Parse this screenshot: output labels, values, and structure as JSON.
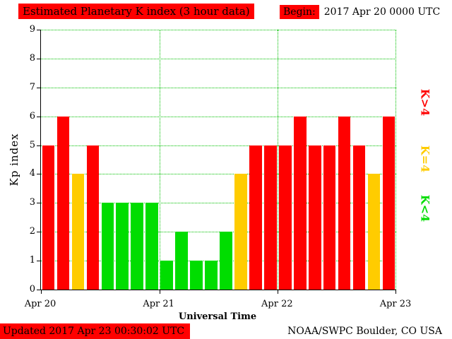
{
  "header": {
    "title": "Estimated Planetary K index (3 hour data)",
    "begin_label": "Begin:",
    "begin_value": "2017 Apr 20 0000 UTC"
  },
  "footer": {
    "updated": "Updated 2017 Apr 23 00:30:02 UTC",
    "source": "NOAA/SWPC Boulder, CO USA"
  },
  "colors": {
    "high": "#ff0000",
    "mid": "#ffcc00",
    "low": "#00dd00",
    "grid": "#00c000",
    "banner": "#ff0000",
    "axis": "#000000"
  },
  "legend": [
    {
      "label": "K>4",
      "color": "#ff0000"
    },
    {
      "label": "K=4",
      "color": "#ffcc00"
    },
    {
      "label": "K<4",
      "color": "#00dd00"
    }
  ],
  "chart_data": {
    "type": "bar",
    "title": "Estimated Planetary K index (3 hour data)",
    "begin": "2017 Apr 20 0000 UTC",
    "xlabel": "Universal Time",
    "ylabel": "Kp index",
    "ylim": [
      0,
      9
    ],
    "yticks": [
      0,
      1,
      2,
      3,
      4,
      5,
      6,
      7,
      8,
      9
    ],
    "x_day_labels": [
      "Apr 20",
      "Apr 21",
      "Apr 22",
      "Apr 23"
    ],
    "bars_per_day": 8,
    "interval_hours": 3,
    "values": [
      5,
      6,
      4,
      5,
      3,
      3,
      3,
      3,
      1,
      2,
      1,
      1,
      2,
      4,
      5,
      5,
      5,
      6,
      5,
      5,
      6,
      5,
      4,
      6
    ],
    "color_rule": {
      "red_if_gt": 4,
      "yellow_if_eq": 4,
      "green_if_lt": 4
    },
    "grid": true,
    "legend_position": "right"
  }
}
